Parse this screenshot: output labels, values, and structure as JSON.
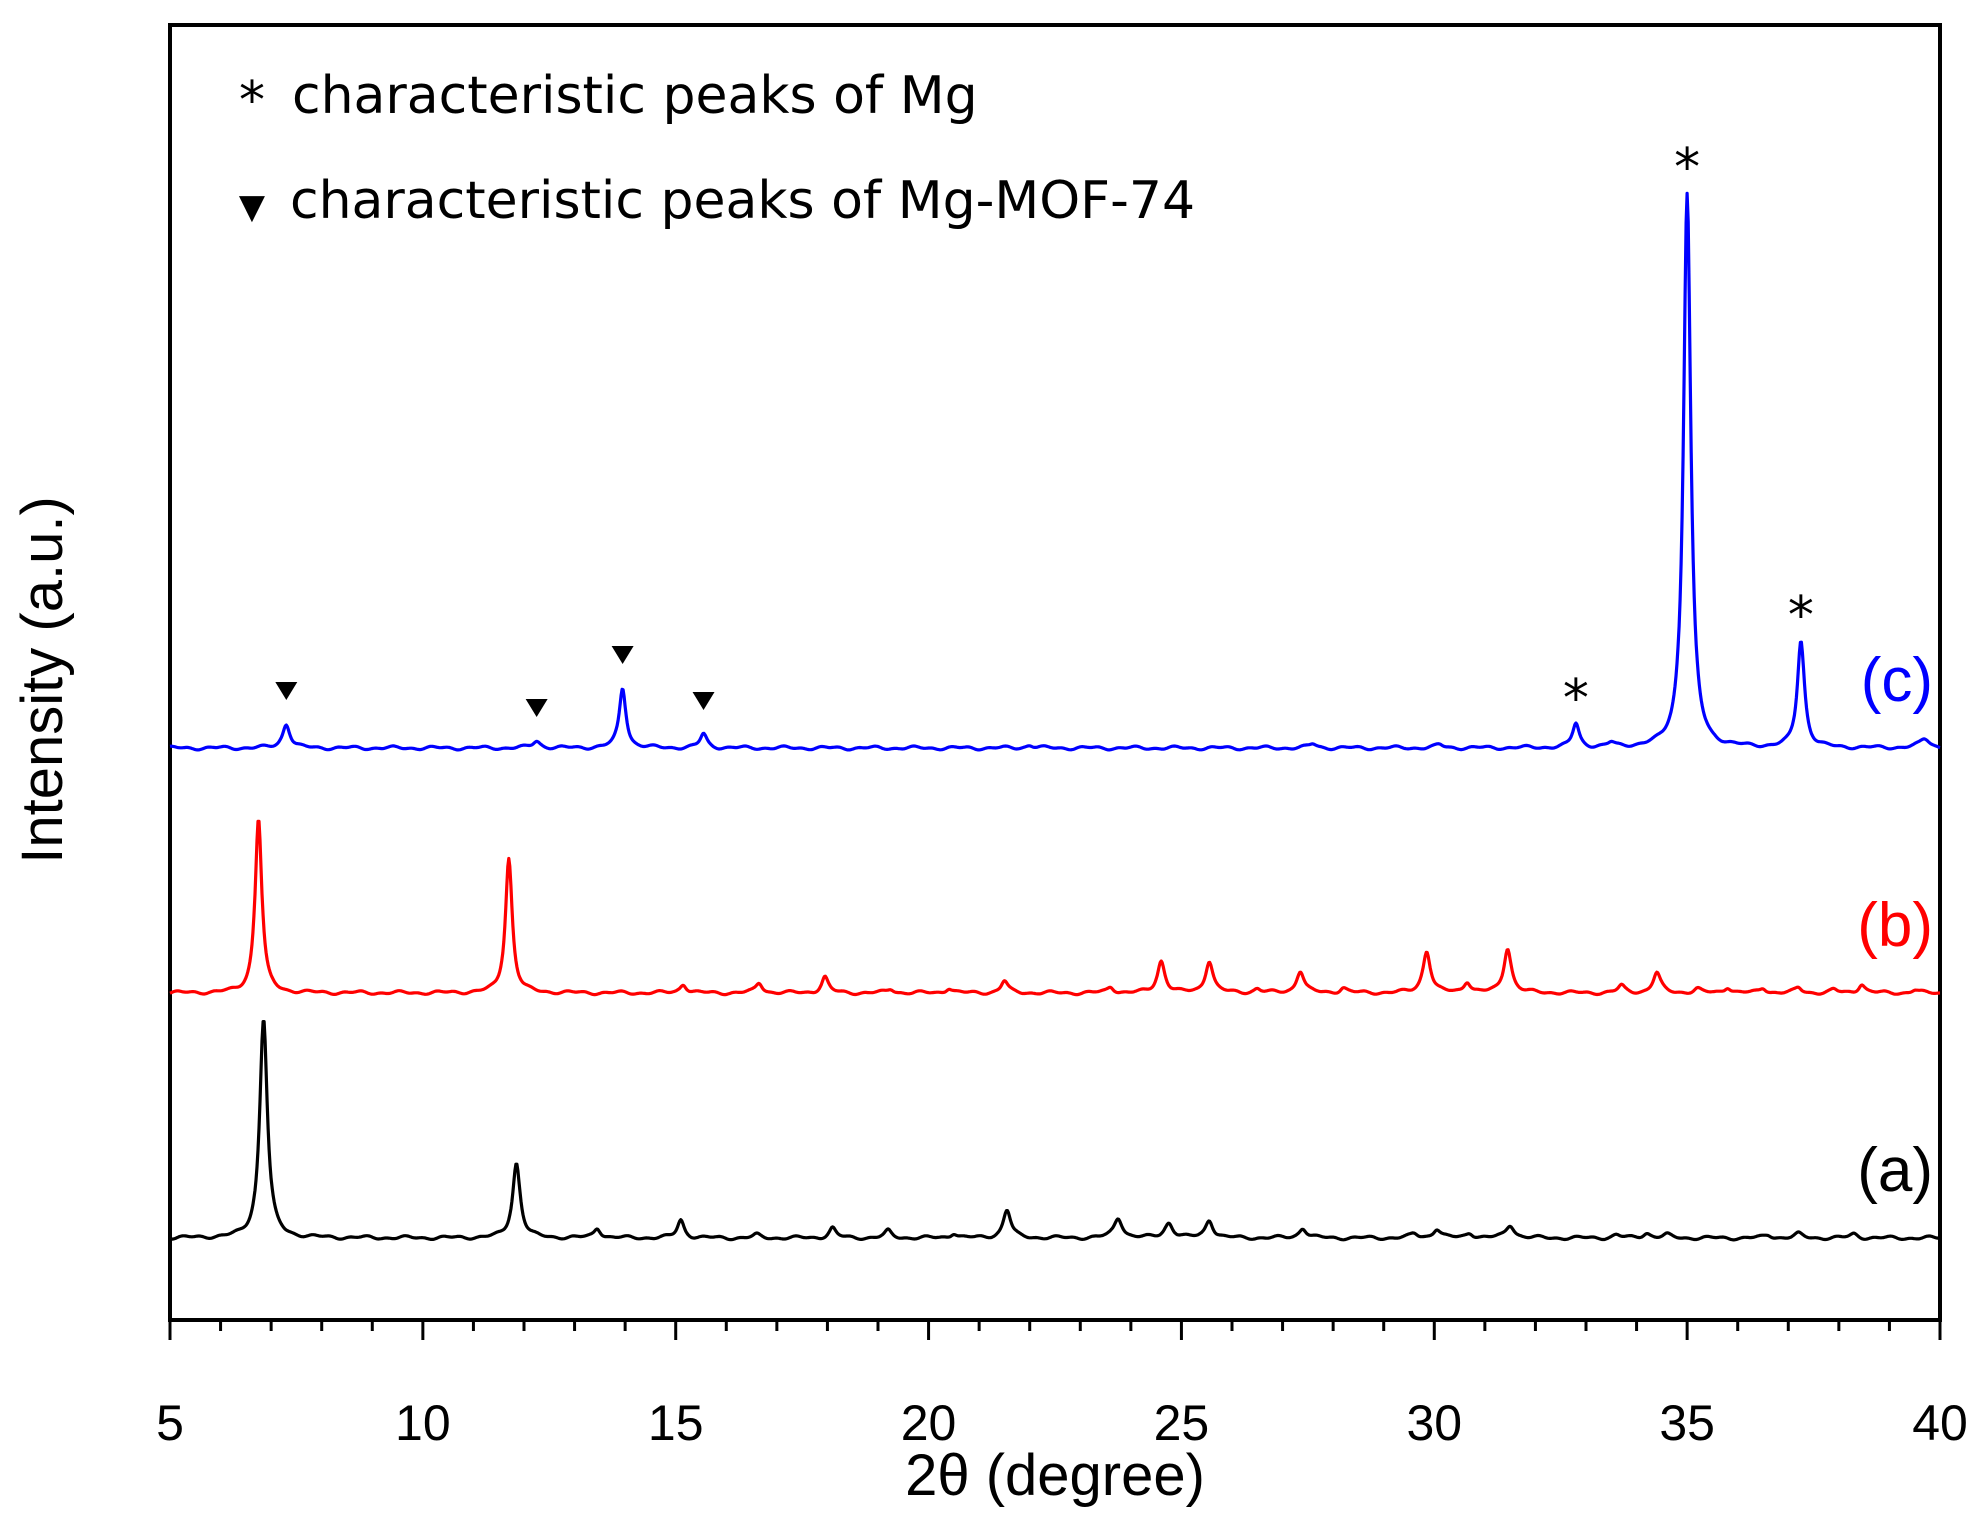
{
  "chart_data": {
    "type": "line",
    "title": "",
    "xlabel": "2θ (degree)",
    "ylabel": "Intensity  (a.u.)",
    "xlim": [
      5,
      40
    ],
    "xticks": [
      5,
      10,
      15,
      20,
      25,
      30,
      35,
      40
    ],
    "yticks_shown": false,
    "grid": false,
    "legend": {
      "placement": "top-left",
      "entries": [
        {
          "symbol": "*",
          "text": "characteristic peaks of Mg"
        },
        {
          "symbol": "▼",
          "text": "characteristic peaks of Mg-MOF-74"
        }
      ]
    },
    "series": [
      {
        "name": "(a)",
        "color": "#000000",
        "baseline_offset": 0,
        "peaks": [
          {
            "x": 6.85,
            "h": 220,
            "w": 0.09
          },
          {
            "x": 11.85,
            "h": 75,
            "w": 0.09
          },
          {
            "x": 13.45,
            "h": 10,
            "w": 0.08
          },
          {
            "x": 15.1,
            "h": 18,
            "w": 0.08
          },
          {
            "x": 16.6,
            "h": 3,
            "w": 0.08
          },
          {
            "x": 18.1,
            "h": 10,
            "w": 0.08
          },
          {
            "x": 19.2,
            "h": 7,
            "w": 0.08
          },
          {
            "x": 20.5,
            "h": 5,
            "w": 0.08
          },
          {
            "x": 21.55,
            "h": 28,
            "w": 0.09
          },
          {
            "x": 23.75,
            "h": 20,
            "w": 0.1
          },
          {
            "x": 24.75,
            "h": 15,
            "w": 0.1
          },
          {
            "x": 25.55,
            "h": 18,
            "w": 0.09
          },
          {
            "x": 27.4,
            "h": 10,
            "w": 0.09
          },
          {
            "x": 29.6,
            "h": 4,
            "w": 0.09
          },
          {
            "x": 30.05,
            "h": 9,
            "w": 0.09
          },
          {
            "x": 30.7,
            "h": 5,
            "w": 0.09
          },
          {
            "x": 31.5,
            "h": 13,
            "w": 0.1
          },
          {
            "x": 33.6,
            "h": 3,
            "w": 0.09
          },
          {
            "x": 34.2,
            "h": 5,
            "w": 0.09
          },
          {
            "x": 34.6,
            "h": 3,
            "w": 0.09
          },
          {
            "x": 36.6,
            "h": 3,
            "w": 0.09
          },
          {
            "x": 37.2,
            "h": 4,
            "w": 0.09
          },
          {
            "x": 38.3,
            "h": 4,
            "w": 0.09
          }
        ]
      },
      {
        "name": "(b)",
        "color": "#ff0000",
        "baseline_offset": 245,
        "peaks": [
          {
            "x": 6.75,
            "h": 175,
            "w": 0.08
          },
          {
            "x": 11.7,
            "h": 135,
            "w": 0.08
          },
          {
            "x": 15.15,
            "h": 9,
            "w": 0.08
          },
          {
            "x": 16.65,
            "h": 10,
            "w": 0.08
          },
          {
            "x": 17.95,
            "h": 16,
            "w": 0.08
          },
          {
            "x": 19.25,
            "h": 4,
            "w": 0.08
          },
          {
            "x": 20.4,
            "h": 5,
            "w": 0.08
          },
          {
            "x": 21.5,
            "h": 12,
            "w": 0.08
          },
          {
            "x": 23.6,
            "h": 6,
            "w": 0.08
          },
          {
            "x": 24.6,
            "h": 32,
            "w": 0.09
          },
          {
            "x": 25.55,
            "h": 32,
            "w": 0.09
          },
          {
            "x": 26.5,
            "h": 4,
            "w": 0.08
          },
          {
            "x": 27.35,
            "h": 22,
            "w": 0.09
          },
          {
            "x": 28.2,
            "h": 5,
            "w": 0.08
          },
          {
            "x": 29.85,
            "h": 42,
            "w": 0.09
          },
          {
            "x": 30.65,
            "h": 11,
            "w": 0.08
          },
          {
            "x": 31.45,
            "h": 45,
            "w": 0.09
          },
          {
            "x": 33.7,
            "h": 7,
            "w": 0.08
          },
          {
            "x": 34.4,
            "h": 20,
            "w": 0.09
          },
          {
            "x": 35.2,
            "h": 4,
            "w": 0.08
          },
          {
            "x": 35.8,
            "h": 6,
            "w": 0.08
          },
          {
            "x": 36.5,
            "h": 5,
            "w": 0.08
          },
          {
            "x": 37.2,
            "h": 5,
            "w": 0.08
          },
          {
            "x": 37.9,
            "h": 3,
            "w": 0.08
          },
          {
            "x": 38.45,
            "h": 9,
            "w": 0.08
          },
          {
            "x": 39.5,
            "h": 3,
            "w": 0.08
          }
        ]
      },
      {
        "name": "(c)",
        "color": "#0000ff",
        "baseline_offset": 490,
        "peaks": [
          {
            "x": 7.3,
            "h": 24,
            "w": 0.09
          },
          {
            "x": 12.25,
            "h": 7,
            "w": 0.09
          },
          {
            "x": 13.95,
            "h": 60,
            "w": 0.08
          },
          {
            "x": 15.55,
            "h": 14,
            "w": 0.08
          },
          {
            "x": 22.0,
            "h": 3,
            "w": 0.09
          },
          {
            "x": 27.6,
            "h": 4,
            "w": 0.09
          },
          {
            "x": 30.1,
            "h": 3,
            "w": 0.09
          },
          {
            "x": 32.8,
            "h": 24,
            "w": 0.08
          },
          {
            "x": 33.5,
            "h": 4,
            "w": 0.08
          },
          {
            "x": 35.0,
            "h": 555,
            "w": 0.085
          },
          {
            "x": 37.25,
            "h": 107,
            "w": 0.085
          },
          {
            "x": 39.7,
            "h": 9,
            "w": 0.12
          }
        ],
        "markers": [
          {
            "x": 7.3,
            "symbol": "▼"
          },
          {
            "x": 12.25,
            "symbol": "▼"
          },
          {
            "x": 13.95,
            "symbol": "▼"
          },
          {
            "x": 15.55,
            "symbol": "▼"
          },
          {
            "x": 32.8,
            "symbol": "*"
          },
          {
            "x": 35.0,
            "symbol": "*"
          },
          {
            "x": 37.25,
            "symbol": "*"
          }
        ]
      }
    ]
  }
}
